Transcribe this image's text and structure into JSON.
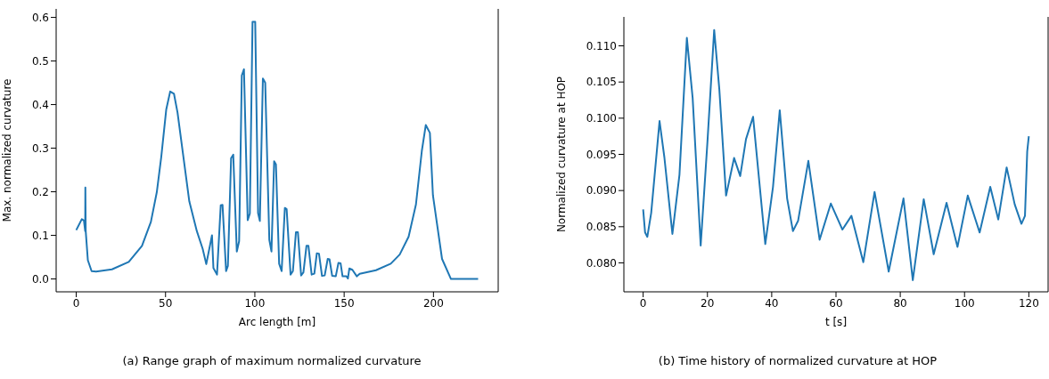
{
  "chart_data": [
    {
      "type": "line",
      "title": "(a) Range graph of maximum normalized curvature",
      "xlabel": "Arc length [m]",
      "ylabel": "Max. normalized curvature",
      "xlim": [
        -11.25,
        236.25
      ],
      "xticks": [
        0,
        50,
        100,
        150,
        200
      ],
      "ylim": [
        -0.0295,
        0.6195
      ],
      "yticks": [
        {
          "value": 0,
          "label": "0.0"
        },
        {
          "value": 0.1,
          "label": "0.1"
        },
        {
          "value": 0.2,
          "label": "0.2"
        },
        {
          "value": 0.3,
          "label": "0.3"
        },
        {
          "value": 0.4,
          "label": "0.4"
        },
        {
          "value": 0.5,
          "label": "0.5"
        },
        {
          "value": 0.6,
          "label": "0.6"
        }
      ],
      "series": [
        {
          "color": "#1f77b4",
          "x": [
            0,
            3.1,
            4.3,
            5,
            5.1,
            5.3,
            6.5,
            8.6,
            11.1,
            20,
            29.4,
            36.8,
            41.8,
            45.1,
            47.6,
            50.4,
            52.6,
            54.7,
            56.7,
            60,
            63.3,
            67.5,
            70.8,
            72.8,
            76,
            76.8,
            78.8,
            80.9,
            81.9,
            83.9,
            84.9,
            86.7,
            87.9,
            89.9,
            91.2,
            92.7,
            93.9,
            96,
            97.2,
            98.7,
            100.2,
            101.8,
            102.8,
            104.5,
            105.8,
            108.1,
            109.3,
            110.8,
            111.8,
            113.6,
            115,
            116.8,
            117.8,
            120,
            121.3,
            123,
            124.1,
            125.9,
            127.2,
            128.9,
            130,
            131.8,
            133.3,
            134.7,
            135.9,
            137.6,
            139.1,
            140.8,
            141.8,
            143.3,
            145.3,
            146.8,
            148,
            149.1,
            151.3,
            152.1,
            152.9,
            154.6,
            157.1,
            158.7,
            167.8,
            176.1,
            181.1,
            186.1,
            190.2,
            193.5,
            195.7,
            198,
            199.7,
            204.8,
            209.8,
            225
          ],
          "values": [
            0.112,
            0.137,
            0.134,
            0.11,
            0.21,
            0.11,
            0.043,
            0.018,
            0.017,
            0.022,
            0.039,
            0.076,
            0.131,
            0.199,
            0.28,
            0.389,
            0.43,
            0.425,
            0.382,
            0.28,
            0.178,
            0.11,
            0.069,
            0.034,
            0.1,
            0.025,
            0.01,
            0.169,
            0.17,
            0.018,
            0.03,
            0.277,
            0.285,
            0.063,
            0.087,
            0.467,
            0.481,
            0.135,
            0.15,
            0.59,
            0.59,
            0.151,
            0.133,
            0.46,
            0.45,
            0.09,
            0.063,
            0.27,
            0.263,
            0.035,
            0.018,
            0.163,
            0.16,
            0.01,
            0.018,
            0.107,
            0.107,
            0.008,
            0.015,
            0.076,
            0.076,
            0.01,
            0.012,
            0.059,
            0.058,
            0.007,
            0.008,
            0.046,
            0.045,
            0.007,
            0.006,
            0.037,
            0.036,
            0.006,
            0.006,
            0.001,
            0.024,
            0.021,
            0.006,
            0.012,
            0.02,
            0.035,
            0.056,
            0.097,
            0.171,
            0.294,
            0.353,
            0.335,
            0.192,
            0.046,
            0,
            0
          ]
        }
      ]
    },
    {
      "type": "line",
      "title": "(b) Time history of normalized curvature at HOP",
      "xlabel": "t [s]",
      "ylabel": "Normalized curvature at HOP",
      "xlim": [
        -6,
        126
      ],
      "xticks": [
        0,
        20,
        40,
        60,
        80,
        100,
        120
      ],
      "ylim": [
        0.076,
        0.114
      ],
      "yticks": [
        {
          "value": 0.08,
          "label": "0.080"
        },
        {
          "value": 0.085,
          "label": "0.085"
        },
        {
          "value": 0.09,
          "label": "0.090"
        },
        {
          "value": 0.095,
          "label": "0.095"
        },
        {
          "value": 0.1,
          "label": "0.100"
        },
        {
          "value": 0.105,
          "label": "0.105"
        },
        {
          "value": 0.11,
          "label": "0.110"
        }
      ],
      "series": [
        {
          "color": "#1f77b4",
          "x": [
            0,
            0.6,
            1.3,
            2.5,
            5.1,
            6.6,
            9.1,
            11.3,
            13.6,
            15.4,
            17.9,
            20,
            22.1,
            23.7,
            25.8,
            28.3,
            30.2,
            32,
            34.2,
            38,
            40.4,
            42.5,
            44.8,
            46.6,
            48.2,
            51.4,
            54.9,
            58.4,
            62,
            64.8,
            68.5,
            72,
            76.4,
            81,
            83.9,
            87.3,
            90.4,
            94.4,
            97.8,
            101,
            104.7,
            108,
            110.5,
            113.1,
            115.6,
            117.7,
            118.8,
            119.5,
            120
          ],
          "values": [
            0.0874,
            0.0842,
            0.0836,
            0.0869,
            0.0996,
            0.0946,
            0.084,
            0.0922,
            0.1111,
            0.1028,
            0.0824,
            0.0967,
            0.1122,
            0.104,
            0.0893,
            0.0945,
            0.092,
            0.0971,
            0.1002,
            0.0826,
            0.0905,
            0.1011,
            0.0889,
            0.0844,
            0.0858,
            0.0941,
            0.0832,
            0.0882,
            0.0846,
            0.0865,
            0.0801,
            0.0898,
            0.0788,
            0.0889,
            0.0776,
            0.0888,
            0.0812,
            0.0883,
            0.0822,
            0.0893,
            0.0842,
            0.0905,
            0.086,
            0.0932,
            0.0881,
            0.0854,
            0.0865,
            0.0954,
            0.0975
          ]
        }
      ]
    }
  ]
}
